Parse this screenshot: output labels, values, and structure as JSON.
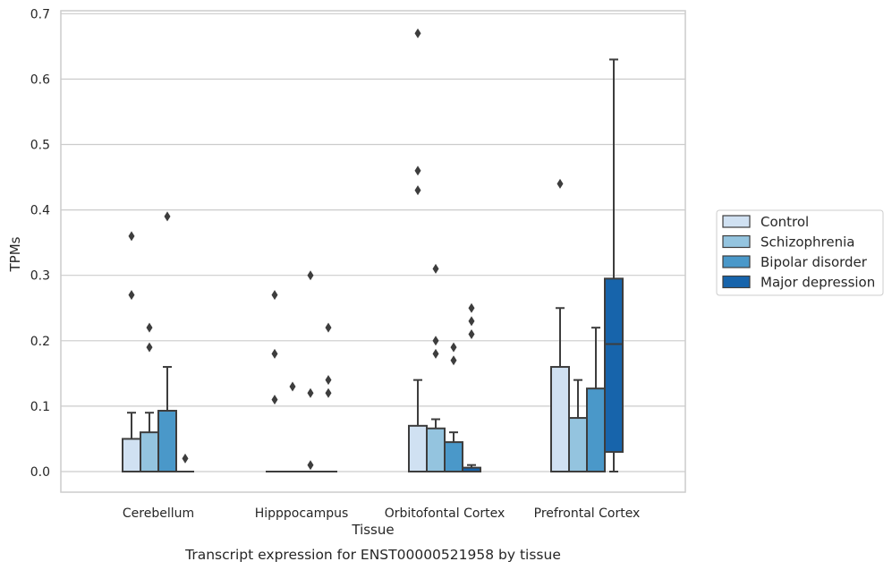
{
  "chart_data": {
    "type": "box",
    "title": "",
    "caption": "Transcript expression for ENST00000521958 by tissue",
    "xlabel": "Tissue",
    "ylabel": "TPMs",
    "ylim": [
      -0.03,
      0.705
    ],
    "yticks": [
      "0.0",
      "0.1",
      "0.2",
      "0.3",
      "0.4",
      "0.5",
      "0.6",
      "0.7"
    ],
    "ytick_values": [
      0,
      0.1,
      0.2,
      0.3,
      0.4,
      0.5,
      0.6,
      0.7
    ],
    "grid": "horizontal",
    "legend_position": "right",
    "categories": [
      "Cerebellum",
      "Hipppocampus",
      "Orbitofontal Cortex",
      "Prefrontal Cortex"
    ],
    "series": [
      {
        "name": "Control",
        "color": "#d0e1f2",
        "boxes": [
          {
            "q1": 0,
            "median": 0,
            "q3": 0.05,
            "whisker_low": 0,
            "whisker_high": 0.09,
            "outliers": [
              0.27,
              0.36
            ]
          },
          {
            "q1": 0,
            "median": 0,
            "q3": 0,
            "whisker_low": 0,
            "whisker_high": 0,
            "outliers": [
              0.11,
              0.18,
              0.27
            ]
          },
          {
            "q1": 0,
            "median": 0,
            "q3": 0.07,
            "whisker_low": 0,
            "whisker_high": 0.14,
            "outliers": [
              0.43,
              0.46,
              0.67
            ]
          },
          {
            "q1": 0,
            "median": 0,
            "q3": 0.16,
            "whisker_low": 0,
            "whisker_high": 0.25,
            "outliers": [
              0.44
            ]
          }
        ]
      },
      {
        "name": "Schizophrenia",
        "color": "#94c4df",
        "boxes": [
          {
            "q1": 0,
            "median": 0,
            "q3": 0.06,
            "whisker_low": 0,
            "whisker_high": 0.09,
            "outliers": [
              0.19,
              0.22
            ]
          },
          {
            "q1": 0,
            "median": 0,
            "q3": 0,
            "whisker_low": 0,
            "whisker_high": 0,
            "outliers": [
              0.13
            ]
          },
          {
            "q1": 0,
            "median": 0,
            "q3": 0.066,
            "whisker_low": 0,
            "whisker_high": 0.08,
            "outliers": [
              0.18,
              0.2,
              0.31
            ]
          },
          {
            "q1": 0,
            "median": 0,
            "q3": 0.082,
            "whisker_low": 0,
            "whisker_high": 0.14,
            "outliers": []
          }
        ]
      },
      {
        "name": "Bipolar disorder",
        "color": "#4a98c9",
        "boxes": [
          {
            "q1": 0,
            "median": 0,
            "q3": 0.093,
            "whisker_low": 0,
            "whisker_high": 0.16,
            "outliers": [
              0.39
            ]
          },
          {
            "q1": 0,
            "median": 0,
            "q3": 0,
            "whisker_low": 0,
            "whisker_high": 0,
            "outliers": [
              0.01,
              0.12,
              0.3
            ]
          },
          {
            "q1": 0,
            "median": 0,
            "q3": 0.045,
            "whisker_low": 0,
            "whisker_high": 0.06,
            "outliers": [
              0.17,
              0.19
            ]
          },
          {
            "q1": 0,
            "median": 0,
            "q3": 0.127,
            "whisker_low": 0,
            "whisker_high": 0.22,
            "outliers": []
          }
        ]
      },
      {
        "name": "Major depression",
        "color": "#1764ab",
        "boxes": [
          {
            "q1": 0,
            "median": 0,
            "q3": 0,
            "whisker_low": 0,
            "whisker_high": 0,
            "outliers": [
              0.02
            ]
          },
          {
            "q1": 0,
            "median": 0,
            "q3": 0,
            "whisker_low": 0,
            "whisker_high": 0,
            "outliers": [
              0.12,
              0.14,
              0.22
            ]
          },
          {
            "q1": 0,
            "median": 0,
            "q3": 0.006,
            "whisker_low": 0,
            "whisker_high": 0.01,
            "outliers": [
              0.21,
              0.23,
              0.25
            ]
          },
          {
            "q1": 0.03,
            "median": 0.195,
            "q3": 0.295,
            "whisker_low": 0,
            "whisker_high": 0.63,
            "outliers": []
          }
        ]
      }
    ]
  }
}
